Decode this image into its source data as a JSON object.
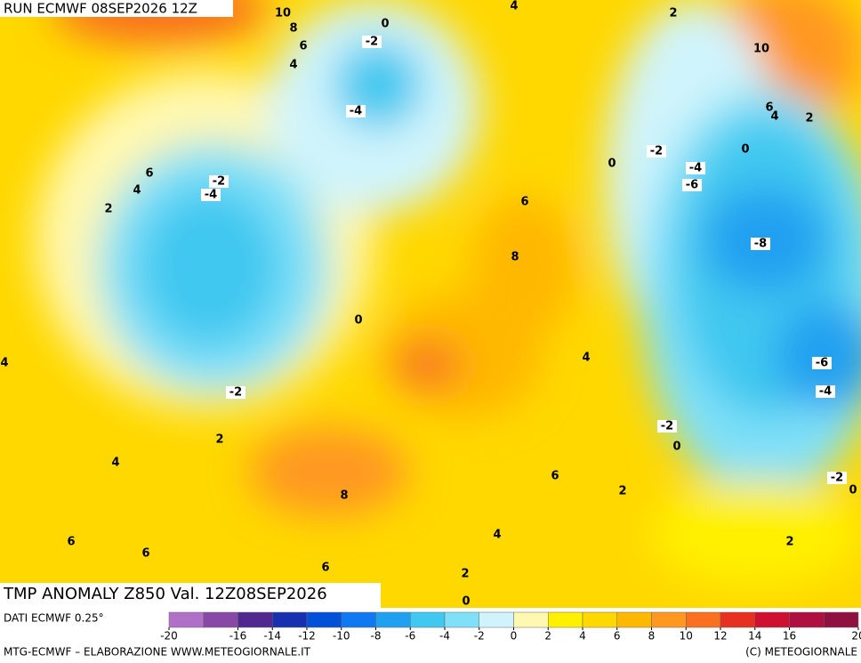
{
  "header": "RUN ECMWF 08SEP2026 12Z",
  "title": "TMP ANOMALY Z850 Val. 12Z08SEP2026",
  "source": "DATI ECMWF 0.25°",
  "footer_left": "MTG-ECMWF – ELABORAZIONE WWW.METEOGIORNALE.IT",
  "footer_right": "(C) METEOGIORNALE",
  "contour_labels": [
    10,
    8,
    6,
    4,
    0,
    -2,
    -4,
    4,
    2,
    10,
    6,
    4,
    2,
    0,
    -2,
    -4,
    -6,
    0,
    6,
    4,
    2,
    -2,
    -4,
    6,
    8,
    -8,
    0,
    4,
    -2,
    4,
    -6,
    -4,
    -2,
    0,
    2,
    4,
    6,
    2,
    8,
    -2,
    0,
    6,
    6,
    4,
    2,
    6,
    2,
    0
  ],
  "colorbar": {
    "lim": [
      -20,
      20
    ],
    "ticks": [
      -20,
      -16,
      -14,
      -12,
      -10,
      -8,
      -6,
      -4,
      -2,
      0,
      2,
      4,
      6,
      8,
      10,
      12,
      14,
      16,
      20
    ],
    "colors": [
      "#b070c8",
      "#8848a8",
      "#502890",
      "#1830b0",
      "#0050d8",
      "#1078f0",
      "#20a0f0",
      "#40c8f0",
      "#80e0f8",
      "#d0f4fc",
      "#fff8b0",
      "#fff000",
      "#ffd800",
      "#ffb800",
      "#ff9820",
      "#f87020",
      "#e83020",
      "#d01030",
      "#b01040",
      "#901040"
    ]
  }
}
